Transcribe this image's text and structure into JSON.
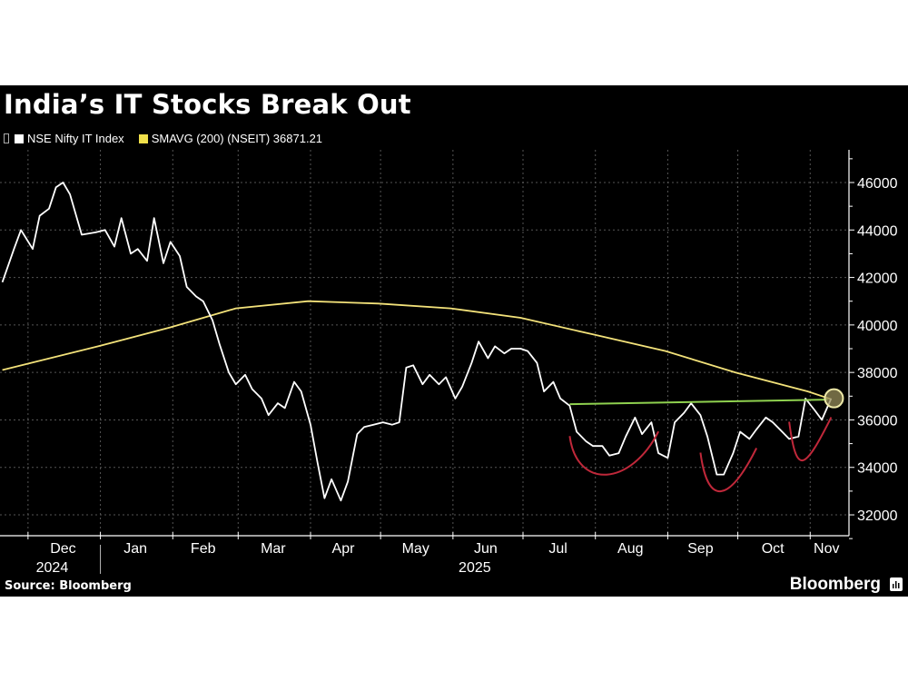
{
  "title": "India’s IT Stocks Break Out",
  "legend": [
    {
      "label": "NSE Nifty IT Index",
      "color": "#ffffff"
    },
    {
      "label": "SMAVG (200) (NSEIT) 36871.21",
      "color": "#f0e04a"
    }
  ],
  "source": "Source: Bloomberg",
  "brand": "Bloomberg",
  "colors": {
    "background": "#000000",
    "index_line": "#ffffff",
    "sma_line": "#f3e27a",
    "resistance_line": "#8fd14f",
    "cup_annotation": "#c0283a",
    "breakout_circle": "#eee9a8"
  },
  "chart_data": {
    "type": "line",
    "title": "India’s IT Stocks Break Out",
    "xlabel": "",
    "ylabel": "",
    "ylim": [
      31000,
      47000
    ],
    "y_ticks": [
      32000,
      34000,
      36000,
      38000,
      40000,
      42000,
      44000,
      46000
    ],
    "x_ticks": [
      "Dec 2024",
      "Jan",
      "Feb",
      "Mar",
      "Apr",
      "May",
      "Jun 2025",
      "Jul",
      "Aug",
      "Sep",
      "Oct",
      "Nov"
    ],
    "grid": true,
    "y_axis_position": "right",
    "legend_position": "top-left",
    "series": [
      {
        "name": "NSE Nifty IT Index",
        "approx_points": [
          [
            "2024-11-20",
            41800
          ],
          [
            "2024-11-25",
            43200
          ],
          [
            "2024-11-28",
            44000
          ],
          [
            "2024-12-03",
            43200
          ],
          [
            "2024-12-06",
            44600
          ],
          [
            "2024-12-10",
            44900
          ],
          [
            "2024-12-13",
            45800
          ],
          [
            "2024-12-16",
            46000
          ],
          [
            "2024-12-19",
            45500
          ],
          [
            "2024-12-24",
            43800
          ],
          [
            "2024-12-30",
            43900
          ],
          [
            "2025-01-03",
            44000
          ],
          [
            "2025-01-07",
            43300
          ],
          [
            "2025-01-10",
            44500
          ],
          [
            "2025-01-14",
            43000
          ],
          [
            "2025-01-17",
            43200
          ],
          [
            "2025-01-21",
            42700
          ],
          [
            "2025-01-24",
            44500
          ],
          [
            "2025-01-28",
            42600
          ],
          [
            "2025-01-31",
            43500
          ],
          [
            "2025-02-04",
            42900
          ],
          [
            "2025-02-07",
            41600
          ],
          [
            "2025-02-11",
            41200
          ],
          [
            "2025-02-14",
            41000
          ],
          [
            "2025-02-18",
            40200
          ],
          [
            "2025-02-21",
            39200
          ],
          [
            "2025-02-25",
            38000
          ],
          [
            "2025-02-28",
            37500
          ],
          [
            "2025-03-04",
            37900
          ],
          [
            "2025-03-07",
            37300
          ],
          [
            "2025-03-11",
            36900
          ],
          [
            "2025-03-14",
            36200
          ],
          [
            "2025-03-18",
            36700
          ],
          [
            "2025-03-21",
            36500
          ],
          [
            "2025-03-25",
            37600
          ],
          [
            "2025-03-28",
            37200
          ],
          [
            "2025-04-01",
            35800
          ],
          [
            "2025-04-04",
            34200
          ],
          [
            "2025-04-07",
            32700
          ],
          [
            "2025-04-10",
            33500
          ],
          [
            "2025-04-14",
            32600
          ],
          [
            "2025-04-17",
            33400
          ],
          [
            "2025-04-21",
            35400
          ],
          [
            "2025-04-24",
            35700
          ],
          [
            "2025-04-28",
            35800
          ],
          [
            "2025-05-02",
            35900
          ],
          [
            "2025-05-06",
            35800
          ],
          [
            "2025-05-09",
            35900
          ],
          [
            "2025-05-12",
            38200
          ],
          [
            "2025-05-15",
            38300
          ],
          [
            "2025-05-19",
            37500
          ],
          [
            "2025-05-22",
            37900
          ],
          [
            "2025-05-26",
            37500
          ],
          [
            "2025-05-29",
            37800
          ],
          [
            "2025-06-02",
            36900
          ],
          [
            "2025-06-05",
            37400
          ],
          [
            "2025-06-09",
            38400
          ],
          [
            "2025-06-12",
            39300
          ],
          [
            "2025-06-16",
            38600
          ],
          [
            "2025-06-19",
            39100
          ],
          [
            "2025-06-23",
            38800
          ],
          [
            "2025-06-26",
            39000
          ],
          [
            "2025-06-30",
            39000
          ],
          [
            "2025-07-03",
            38900
          ],
          [
            "2025-07-07",
            38400
          ],
          [
            "2025-07-10",
            37200
          ],
          [
            "2025-07-14",
            37600
          ],
          [
            "2025-07-17",
            36900
          ],
          [
            "2025-07-21",
            36600
          ],
          [
            "2025-07-24",
            35500
          ],
          [
            "2025-07-28",
            35100
          ],
          [
            "2025-07-31",
            34900
          ],
          [
            "2025-08-04",
            34900
          ],
          [
            "2025-08-07",
            34500
          ],
          [
            "2025-08-11",
            34600
          ],
          [
            "2025-08-14",
            35300
          ],
          [
            "2025-08-18",
            36100
          ],
          [
            "2025-08-21",
            35400
          ],
          [
            "2025-08-25",
            35900
          ],
          [
            "2025-08-28",
            34600
          ],
          [
            "2025-09-01",
            34400
          ],
          [
            "2025-09-04",
            35900
          ],
          [
            "2025-09-08",
            36300
          ],
          [
            "2025-09-11",
            36700
          ],
          [
            "2025-09-15",
            36200
          ],
          [
            "2025-09-18",
            35300
          ],
          [
            "2025-09-22",
            33700
          ],
          [
            "2025-09-25",
            33700
          ],
          [
            "2025-09-29",
            34600
          ],
          [
            "2025-10-02",
            35500
          ],
          [
            "2025-10-06",
            35200
          ],
          [
            "2025-10-09",
            35600
          ],
          [
            "2025-10-13",
            36100
          ],
          [
            "2025-10-16",
            35900
          ],
          [
            "2025-10-20",
            35500
          ],
          [
            "2025-10-23",
            35200
          ],
          [
            "2025-10-27",
            35300
          ],
          [
            "2025-10-30",
            36900
          ],
          [
            "2025-11-03",
            36400
          ],
          [
            "2025-11-06",
            36000
          ],
          [
            "2025-11-10",
            36900
          ]
        ]
      },
      {
        "name": "SMAVG (200) (NSEIT)",
        "last_value": 36871.21,
        "approx_points": [
          [
            "2024-11-20",
            38100
          ],
          [
            "2024-12-31",
            39100
          ],
          [
            "2025-01-31",
            39900
          ],
          [
            "2025-02-28",
            40700
          ],
          [
            "2025-03-31",
            41000
          ],
          [
            "2025-04-30",
            40900
          ],
          [
            "2025-05-31",
            40700
          ],
          [
            "2025-06-30",
            40300
          ],
          [
            "2025-07-31",
            39600
          ],
          [
            "2025-08-31",
            38900
          ],
          [
            "2025-09-30",
            38000
          ],
          [
            "2025-10-31",
            37200
          ],
          [
            "2025-11-10",
            36871
          ]
        ]
      }
    ],
    "annotations": [
      {
        "type": "horizontal_line",
        "label": "resistance",
        "value": 36700,
        "from": "2025-07-21",
        "to": "2025-11-10",
        "color": "#8fd14f"
      },
      {
        "type": "arc",
        "label": "cup 1",
        "from": "2025-07-21",
        "to": "2025-08-28",
        "bottom": 33600,
        "color": "#c0283a"
      },
      {
        "type": "arc",
        "label": "cup 2",
        "from": "2025-09-15",
        "to": "2025-10-09",
        "bottom": 32900,
        "color": "#c0283a"
      },
      {
        "type": "arc",
        "label": "cup 3",
        "from": "2025-10-23",
        "to": "2025-11-10",
        "bottom": 34200,
        "color": "#c0283a"
      },
      {
        "type": "circle",
        "label": "breakout",
        "at": "2025-11-10",
        "value": 36871,
        "color": "#eee9a8"
      }
    ]
  }
}
